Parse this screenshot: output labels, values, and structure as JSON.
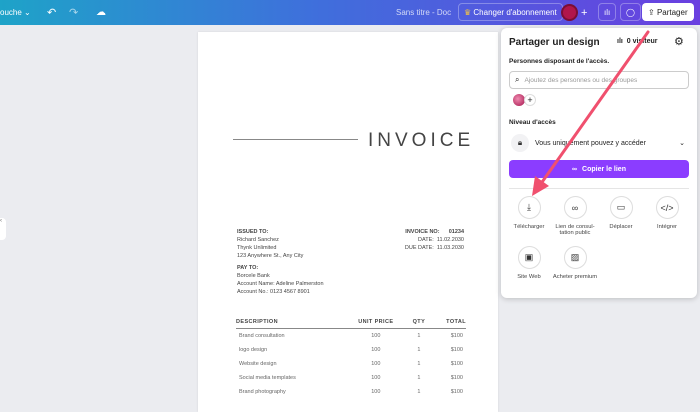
{
  "topbar": {
    "menu_label": "ouche",
    "doc_title": "Sans titre - Doc",
    "upgrade_label": "Changer d'abonnement",
    "share_label": "Partager",
    "icons": [
      "undo-icon",
      "redo-icon",
      "cloud-save-icon",
      "crown-icon",
      "plus-icon",
      "chart-icon",
      "comment-icon",
      "share-icon"
    ]
  },
  "invoice": {
    "title": "INVOICE",
    "issued_to_label": "ISSUED TO:",
    "issued_to": [
      "Richard Sanchez",
      "Thynk Unlimited",
      "123 Anywhere St., Any City"
    ],
    "invoice_no_label": "INVOICE NO:",
    "invoice_no": "01234",
    "date_label": "DATE:",
    "date": "11.02.2030",
    "due_label": "DUE DATE:",
    "due": "11.03.2030",
    "pay_to_label": "PAY TO:",
    "pay_to": [
      "Borcele Bank",
      "Account Name: Adeline Palmerston",
      "Account No.: 0123 4567 8901"
    ],
    "columns": [
      "DESCRIPTION",
      "UNIT PRICE",
      "QTY",
      "TOTAL"
    ],
    "rows": [
      [
        "Brand consultation",
        "100",
        "1",
        "$100"
      ],
      [
        "logo design",
        "100",
        "1",
        "$100"
      ],
      [
        "Website design",
        "100",
        "1",
        "$100"
      ],
      [
        "Social media templates",
        "100",
        "1",
        "$100"
      ],
      [
        "Brand photography",
        "100",
        "1",
        "$100"
      ]
    ]
  },
  "share": {
    "title": "Partager un design",
    "visitors": "0 visiteur",
    "people_label": "Personnes disposant de l'accès.",
    "search_placeholder": "Ajoutez des personnes ou des groupes",
    "access_label": "Niveau d'accès",
    "access_value": "Vous uniquement pouvez y accéder",
    "copy_label": "Copier le lien",
    "actions": [
      {
        "label": "Télécharger",
        "icon": "download-icon",
        "glyph": "⤓"
      },
      {
        "label": "Lien de consul-tation public",
        "icon": "link-icon",
        "glyph": "∞"
      },
      {
        "label": "Déplacer",
        "icon": "folder-icon",
        "glyph": "▭"
      },
      {
        "label": "Intégrer",
        "icon": "embed-icon",
        "glyph": "</>"
      },
      {
        "label": "Site Web",
        "icon": "website-icon",
        "glyph": "▣"
      },
      {
        "label": "Acheter premium",
        "icon": "image-icon",
        "glyph": "▨"
      }
    ]
  },
  "colors": {
    "accent": "#8b3dff",
    "arrow": "#f0506e"
  }
}
